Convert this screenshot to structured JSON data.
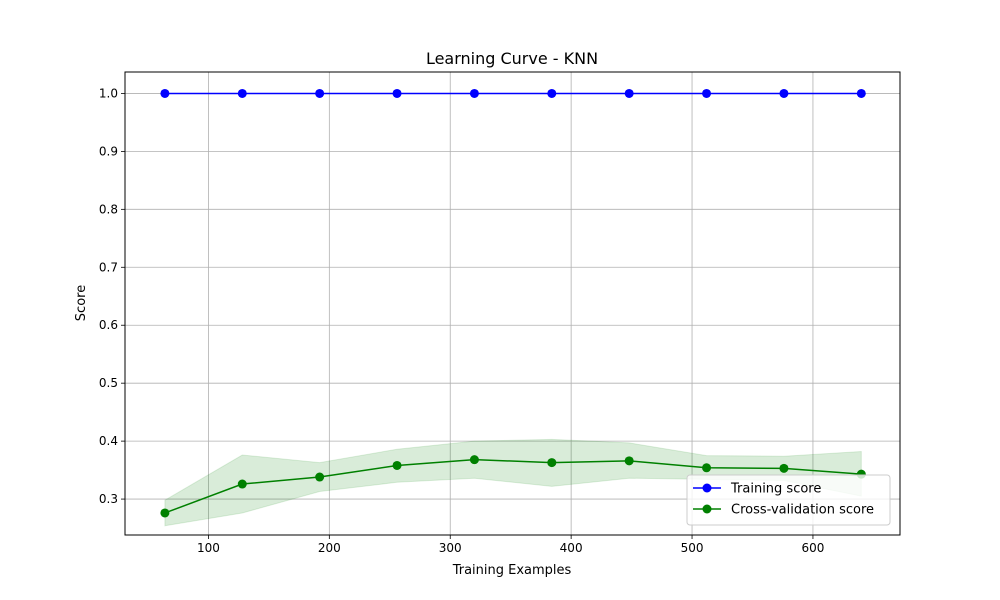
{
  "chart_data": {
    "type": "line",
    "title": "Learning Curve - KNN",
    "xlabel": "Training Examples",
    "ylabel": "Score",
    "xlim": [
      31,
      672
    ],
    "ylim": [
      0.238,
      1.037
    ],
    "xticks": [
      100,
      200,
      300,
      400,
      500,
      600
    ],
    "yticks": [
      0.3,
      0.4,
      0.5,
      0.6,
      0.7,
      0.8,
      0.9,
      1.0
    ],
    "xtick_labels": [
      "100",
      "200",
      "300",
      "400",
      "500",
      "600"
    ],
    "ytick_labels": [
      "0.3",
      "0.4",
      "0.5",
      "0.6",
      "0.7",
      "0.8",
      "0.9",
      "1.0"
    ],
    "grid": true,
    "legend_position": "lower-right",
    "x": [
      64,
      128,
      192,
      256,
      320,
      384,
      448,
      512,
      576,
      640
    ],
    "series": [
      {
        "name": "Training score",
        "color": "#0000ff",
        "values": [
          1.0,
          1.0,
          1.0,
          1.0,
          1.0,
          1.0,
          1.0,
          1.0,
          1.0,
          1.0
        ],
        "band_lower": [
          1.0,
          1.0,
          1.0,
          1.0,
          1.0,
          1.0,
          1.0,
          1.0,
          1.0,
          1.0
        ],
        "band_upper": [
          1.0,
          1.0,
          1.0,
          1.0,
          1.0,
          1.0,
          1.0,
          1.0,
          1.0,
          1.0
        ]
      },
      {
        "name": "Cross-validation score",
        "color": "#008000",
        "values": [
          0.276,
          0.326,
          0.338,
          0.358,
          0.368,
          0.363,
          0.366,
          0.354,
          0.353,
          0.343
        ],
        "band_lower": [
          0.254,
          0.276,
          0.313,
          0.329,
          0.336,
          0.322,
          0.336,
          0.334,
          0.332,
          0.305
        ],
        "band_upper": [
          0.298,
          0.376,
          0.363,
          0.386,
          0.4,
          0.403,
          0.397,
          0.375,
          0.374,
          0.382
        ]
      }
    ]
  }
}
